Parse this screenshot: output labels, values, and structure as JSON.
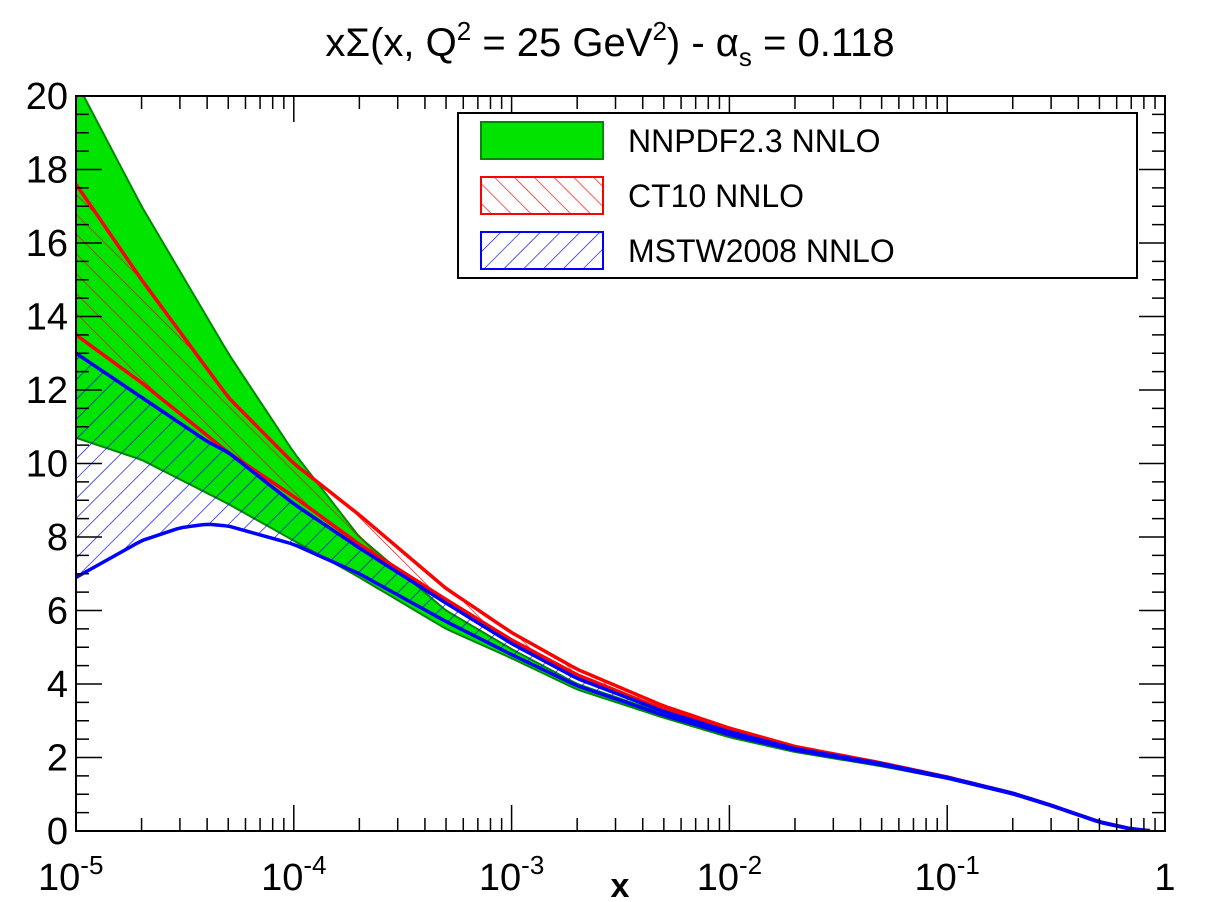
{
  "chart_data": {
    "type": "area",
    "title": {
      "main": "xΣ(x, Q",
      "sup1": "2",
      "mid": " = 25 GeV",
      "sup2": "2",
      "post": ") - α",
      "sub": "s",
      "tail": " = 0.118"
    },
    "xlabel": "x",
    "ylabel": "",
    "xscale": "log",
    "xlim": [
      1e-05,
      1
    ],
    "ylim": [
      0,
      20
    ],
    "grid": false,
    "legend_position": "top-right",
    "x_ticks": [
      {
        "base": "10",
        "exp": "-5",
        "value": 1e-05
      },
      {
        "base": "10",
        "exp": "-4",
        "value": 0.0001
      },
      {
        "base": "10",
        "exp": "-3",
        "value": 0.001
      },
      {
        "base": "10",
        "exp": "-2",
        "value": 0.01
      },
      {
        "base": "10",
        "exp": "-1",
        "value": 0.1
      },
      {
        "base": "1",
        "exp": "",
        "value": 1
      }
    ],
    "y_ticks": [
      "0",
      "2",
      "4",
      "6",
      "8",
      "10",
      "12",
      "14",
      "16",
      "18",
      "20"
    ],
    "series": [
      {
        "name": "NNPDF2.3 NNLO",
        "style": "solid",
        "fill_color": "#00e400",
        "line_color": "#008800",
        "x": [
          1e-05,
          2e-05,
          5e-05,
          0.0001,
          0.0002,
          0.0005,
          0.001,
          0.002,
          0.005,
          0.01,
          0.02,
          0.05,
          0.1,
          0.2,
          0.3,
          0.5,
          0.7,
          0.85
        ],
        "upper": [
          20.4,
          17.0,
          13.0,
          10.3,
          8.0,
          6.0,
          4.95,
          4.0,
          3.2,
          2.62,
          2.22,
          1.8,
          1.45,
          1.02,
          0.7,
          0.25,
          0.06,
          0.01
        ],
        "lower": [
          10.7,
          10.1,
          8.9,
          7.9,
          6.9,
          5.5,
          4.7,
          3.85,
          3.08,
          2.55,
          2.15,
          1.76,
          1.42,
          1.0,
          0.68,
          0.24,
          0.05,
          0.0
        ]
      },
      {
        "name": "CT10 NNLO",
        "style": "hatch",
        "fill_color": "#ff0000",
        "line_color": "#ff0000",
        "x": [
          1e-05,
          2e-05,
          5e-05,
          0.0001,
          0.0002,
          0.0005,
          0.001,
          0.002,
          0.005,
          0.01,
          0.02,
          0.05,
          0.1,
          0.2,
          0.3,
          0.5,
          0.7,
          0.85
        ],
        "upper": [
          17.6,
          15.0,
          11.8,
          10.0,
          8.6,
          6.6,
          5.4,
          4.4,
          3.4,
          2.8,
          2.3,
          1.85,
          1.47,
          1.03,
          0.7,
          0.25,
          0.06,
          0.01
        ],
        "lower": [
          13.5,
          12.2,
          10.3,
          9.1,
          7.8,
          6.3,
          5.2,
          4.25,
          3.3,
          2.74,
          2.26,
          1.82,
          1.45,
          1.02,
          0.69,
          0.24,
          0.05,
          0.0
        ]
      },
      {
        "name": "MSTW2008 NNLO",
        "style": "hatch",
        "fill_color": "#0000ff",
        "line_color": "#0000ff",
        "x": [
          1e-05,
          2e-05,
          3e-05,
          4e-05,
          5e-05,
          0.0001,
          0.0002,
          0.0005,
          0.001,
          0.002,
          0.005,
          0.01,
          0.02,
          0.05,
          0.1,
          0.2,
          0.3,
          0.5,
          0.7,
          0.85
        ],
        "upper": [
          13.0,
          11.8,
          11.1,
          10.6,
          10.3,
          8.9,
          7.7,
          6.2,
          5.1,
          4.15,
          3.25,
          2.7,
          2.24,
          1.83,
          1.46,
          1.03,
          0.7,
          0.25,
          0.06,
          0.01
        ],
        "lower": [
          6.9,
          7.9,
          8.25,
          8.35,
          8.3,
          7.8,
          7.0,
          5.7,
          4.8,
          3.95,
          3.15,
          2.62,
          2.2,
          1.8,
          1.44,
          1.01,
          0.69,
          0.24,
          0.05,
          0.0
        ]
      }
    ]
  }
}
